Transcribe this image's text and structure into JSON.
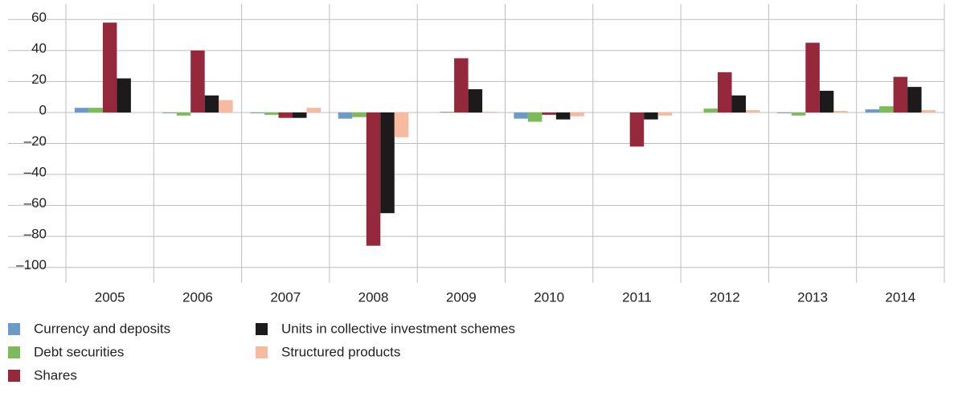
{
  "chart_data": {
    "type": "bar",
    "categories": [
      "2005",
      "2006",
      "2007",
      "2008",
      "2009",
      "2010",
      "2011",
      "2012",
      "2013",
      "2014"
    ],
    "series": [
      {
        "name": "Currency and deposits",
        "color": "#6b9bc7",
        "values": [
          3,
          -0.5,
          -0.5,
          -4,
          0,
          -4,
          0,
          0,
          -0.5,
          2
        ]
      },
      {
        "name": "Debt securities",
        "color": "#7dbb5a",
        "values": [
          3,
          -2,
          -1.5,
          -3,
          0.5,
          -6,
          0,
          2.5,
          -2,
          4
        ]
      },
      {
        "name": "Shares",
        "color": "#95283a",
        "values": [
          58,
          40,
          -3.5,
          -86,
          35,
          -1.5,
          -22,
          26,
          45,
          23
        ]
      },
      {
        "name": "Units in collective investment schemes",
        "color": "#1c1a1b",
        "values": [
          22,
          11,
          -3.5,
          -65,
          15,
          -4.5,
          -4.5,
          11,
          14,
          16.5
        ]
      },
      {
        "name": "Structured products",
        "color": "#f7b9a0",
        "values": [
          0,
          8,
          3,
          -16,
          0.5,
          -2.5,
          -2,
          1.5,
          1,
          1.5
        ]
      }
    ],
    "ylim": [
      -110,
      70
    ],
    "yticks": [
      {
        "value": -100,
        "label": "–100"
      },
      {
        "value": -80,
        "label": "–80"
      },
      {
        "value": -60,
        "label": "–60"
      },
      {
        "value": -40,
        "label": "–40"
      },
      {
        "value": -20,
        "label": "–20"
      },
      0,
      20,
      40,
      60
    ],
    "grid": true
  }
}
